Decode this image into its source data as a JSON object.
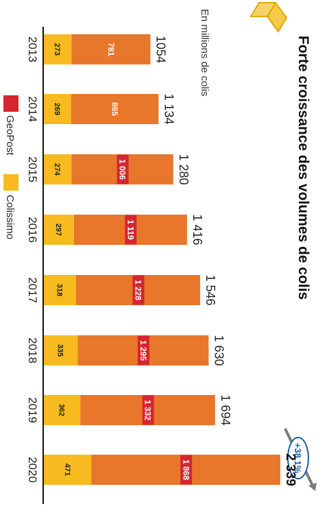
{
  "chart_data": {
    "type": "bar",
    "stacked": true,
    "title": "Forte croissance des volumes de colis",
    "subtitle": "En millions de colis",
    "categories": [
      "2013",
      "2014",
      "2015",
      "2016",
      "2017",
      "2018",
      "2019",
      "2020"
    ],
    "series": [
      {
        "name": "Colissimo",
        "values": [
          273,
          269,
          274,
          297,
          318,
          335,
          362,
          471
        ]
      },
      {
        "name": "GeoPost",
        "values": [
          781,
          865,
          1006,
          1119,
          1228,
          1295,
          1332,
          1868
        ]
      }
    ],
    "total_labels": [
      "1054",
      "1 134",
      "1 280",
      "1 416",
      "1 546",
      "1 630",
      "1 694",
      "2 339"
    ],
    "geopost_labels": [
      "781",
      "865",
      "1 006",
      "1 119",
      "1 228",
      "1 295",
      "1 332",
      "1 868"
    ],
    "colissimo_labels": [
      "273",
      "269",
      "274",
      "297",
      "318",
      "335",
      "362",
      "471"
    ],
    "growth_badge": "+38,1%",
    "legend": [
      "GeoPost",
      "Colissimo"
    ],
    "colors": {
      "geopost_bar": "#e8762b",
      "geopost_label_bg": "#d6252f",
      "geopost_legend": "#d6252f",
      "colissimo": "#f7bb1f",
      "axis": "#111111",
      "growth": "#1b5fa8"
    },
    "legend_position": "bottom"
  }
}
